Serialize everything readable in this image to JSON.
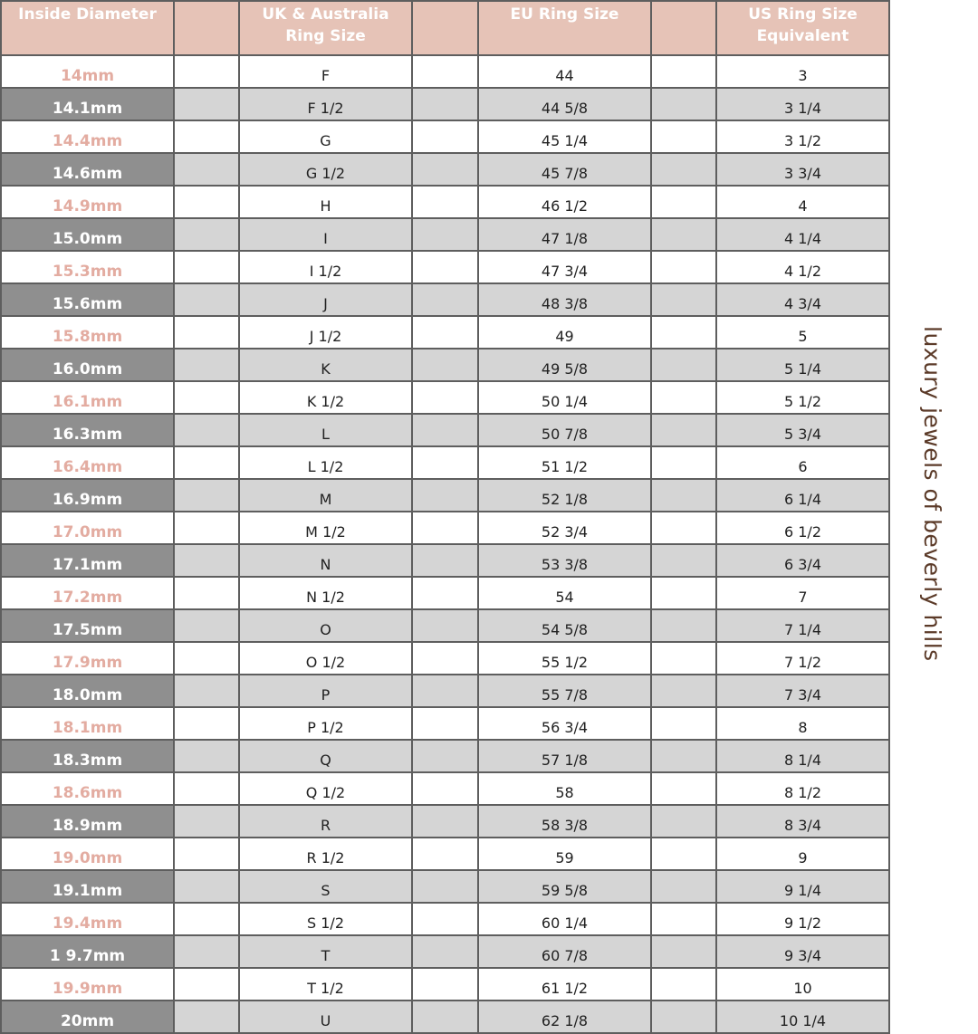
{
  "headers": [
    "Inside Diameter",
    "",
    "UK & Australia\nRing Size",
    "",
    "EU Ring Size",
    "",
    "US Ring Size\nEquivalent"
  ],
  "rows": [
    [
      "14mm",
      "F",
      "44",
      "3"
    ],
    [
      "14.1mm",
      "F 1/2",
      "44 5/8",
      "3 1/4"
    ],
    [
      "14.4mm",
      "G",
      "45 1/4",
      "3 1/2"
    ],
    [
      "14.6mm",
      "G 1/2",
      "45 7/8",
      "3 3/4"
    ],
    [
      "14.9mm",
      "H",
      "46 1/2",
      "4"
    ],
    [
      "15.0mm",
      "I",
      "47 1/8",
      "4 1/4"
    ],
    [
      "15.3mm",
      "I 1/2",
      "47 3/4",
      "4 1/2"
    ],
    [
      "15.6mm",
      "J",
      "48 3/8",
      "4 3/4"
    ],
    [
      "15.8mm",
      "J 1/2",
      "49",
      "5"
    ],
    [
      "16.0mm",
      "K",
      "49 5/8",
      "5 1/4"
    ],
    [
      "16.1mm",
      "K 1/2",
      "50 1/4",
      "5 1/2"
    ],
    [
      "16.3mm",
      "L",
      "50 7/8",
      "5 3/4"
    ],
    [
      "16.4mm",
      "L 1/2",
      "51 1/2",
      "6"
    ],
    [
      "16.9mm",
      "M",
      "52 1/8",
      "6 1/4"
    ],
    [
      "17.0mm",
      "M 1/2",
      "52 3/4",
      "6 1/2"
    ],
    [
      "17.1mm",
      "N",
      "53 3/8",
      "6 3/4"
    ],
    [
      "17.2mm",
      "N 1/2",
      "54",
      "7"
    ],
    [
      "17.5mm",
      "O",
      "54 5/8",
      "7 1/4"
    ],
    [
      "17.9mm",
      "O 1/2",
      "55 1/2",
      "7 1/2"
    ],
    [
      "18.0mm",
      "P",
      "55 7/8",
      "7 3/4"
    ],
    [
      "18.1mm",
      "P 1/2",
      "56 3/4",
      "8"
    ],
    [
      "18.3mm",
      "Q",
      "57 1/8",
      "8 1/4"
    ],
    [
      "18.6mm",
      "Q 1/2",
      "58",
      "8 1/2"
    ],
    [
      "18.9mm",
      "R",
      "58 3/8",
      "8 3/4"
    ],
    [
      "19.0mm",
      "R 1/2",
      "59",
      "9"
    ],
    [
      "19.1mm",
      "S",
      "59 5/8",
      "9 1/4"
    ],
    [
      "19.4mm",
      "S 1/2",
      "60 1/4",
      "9 1/2"
    ],
    [
      "1 9.7mm",
      "T",
      "60 7/8",
      "9 3/4"
    ],
    [
      "19.9mm",
      "T 1/2",
      "61 1/2",
      "10"
    ],
    [
      "20mm",
      "U",
      "62 1/8",
      "10 1/4"
    ]
  ],
  "side_text": "luxury jewels of beverly hills",
  "colors": {
    "header": "#e6c3b7",
    "dark_gray": "#8f8f8f",
    "light_gray": "#d5d5d5",
    "pink_text": "#e3aca1",
    "side_text": "#5b3a28"
  }
}
